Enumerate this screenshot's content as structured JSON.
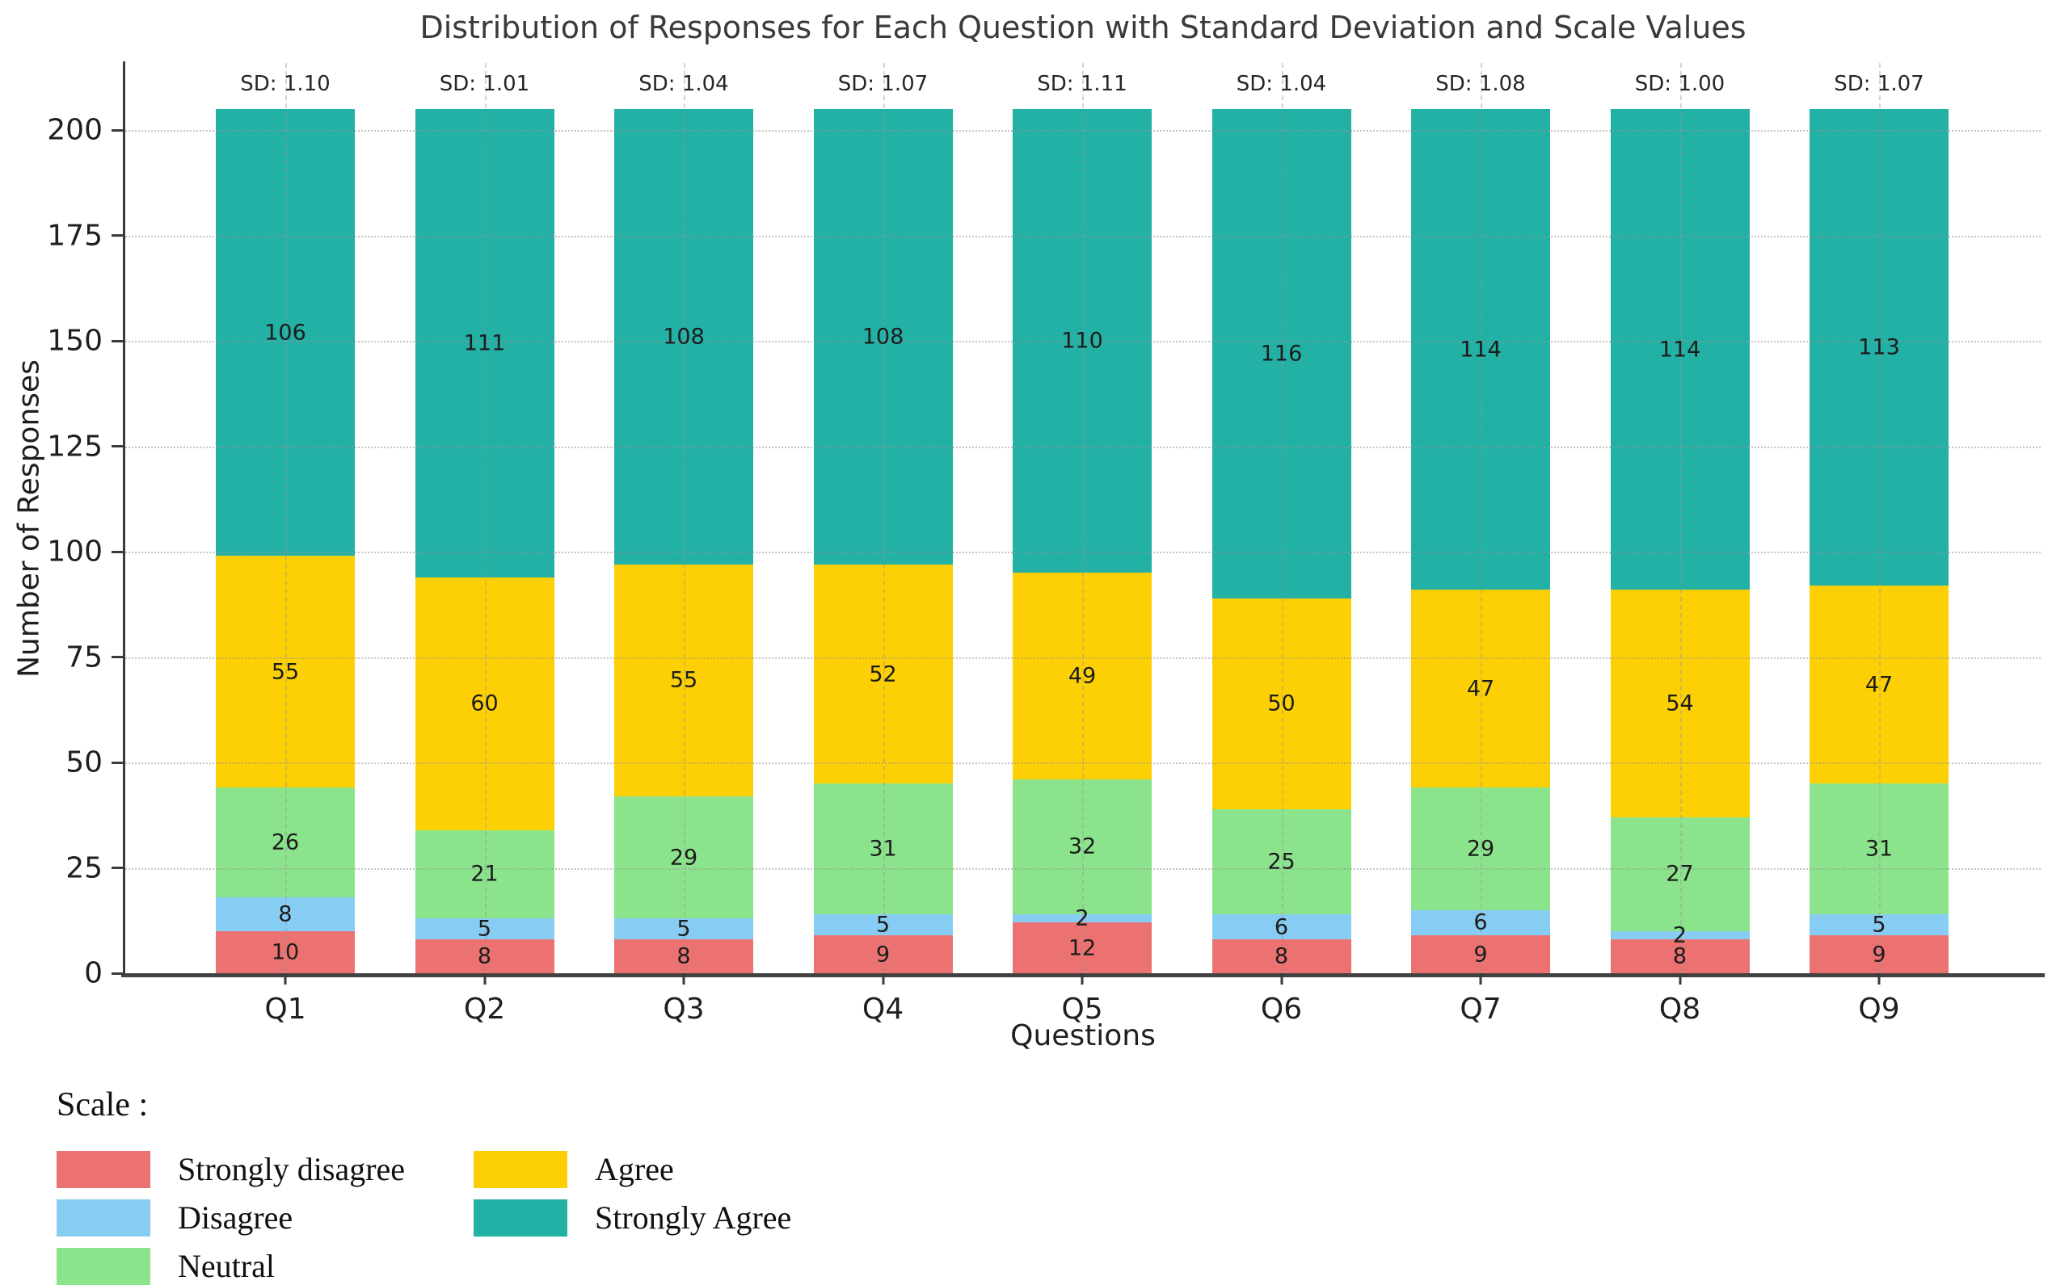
{
  "chart_data": {
    "type": "bar",
    "stacked": true,
    "title": "Distribution of Responses for Each Question with Standard Deviation and Scale Values",
    "xlabel": "Questions",
    "ylabel": "Number of Responses",
    "categories": [
      "Q1",
      "Q2",
      "Q3",
      "Q4",
      "Q5",
      "Q6",
      "Q7",
      "Q8",
      "Q9"
    ],
    "series": [
      {
        "name": "Strongly disagree",
        "color": "#EC7272",
        "values": [
          10,
          8,
          8,
          9,
          12,
          8,
          9,
          8,
          9
        ]
      },
      {
        "name": "Disagree",
        "color": "#87CDF3",
        "values": [
          8,
          5,
          5,
          5,
          2,
          6,
          6,
          2,
          5
        ]
      },
      {
        "name": "Neutral",
        "color": "#8BE48B",
        "values": [
          26,
          21,
          29,
          31,
          32,
          25,
          29,
          27,
          31
        ]
      },
      {
        "name": "Agree",
        "color": "#FCD005",
        "values": [
          55,
          60,
          55,
          52,
          49,
          50,
          47,
          54,
          47
        ]
      },
      {
        "name": "Strongly Agree",
        "color": "#23B0A5",
        "values": [
          106,
          111,
          108,
          108,
          110,
          116,
          114,
          114,
          113
        ]
      }
    ],
    "sd_labels": [
      "SD: 1.10",
      "SD: 1.01",
      "SD: 1.04",
      "SD: 1.07",
      "SD: 1.11",
      "SD: 1.04",
      "SD: 1.08",
      "SD: 1.00",
      "SD: 1.07"
    ],
    "yticks": [
      0,
      25,
      50,
      75,
      100,
      125,
      150,
      175,
      200
    ],
    "ylim": [
      0,
      216
    ],
    "grid": true,
    "legend": {
      "title": "Scale :",
      "position": "below-left",
      "columns": [
        [
          "Strongly disagree",
          "Disagree",
          "Neutral"
        ],
        [
          "Agree",
          "Strongly Agree"
        ]
      ]
    }
  }
}
